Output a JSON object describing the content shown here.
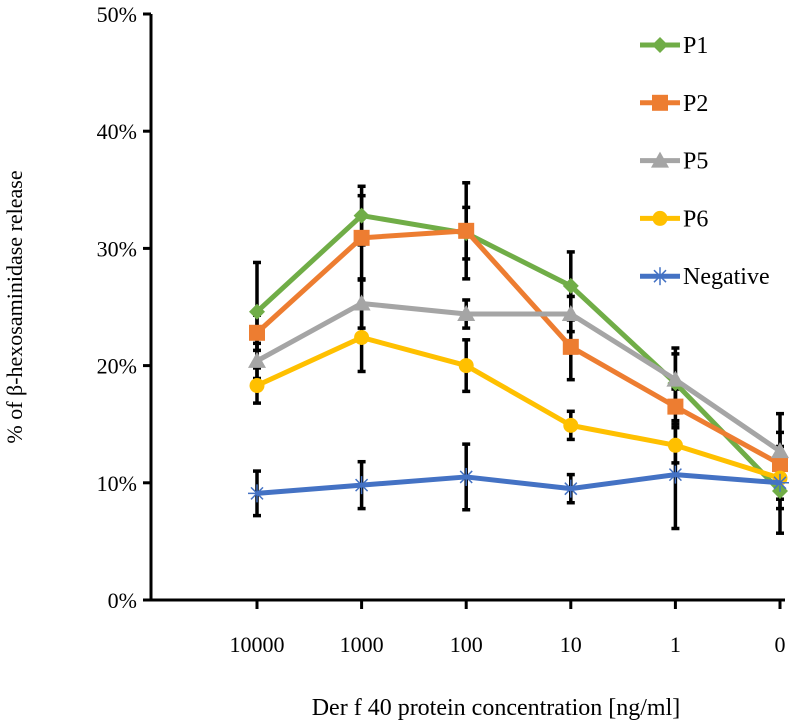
{
  "chart_data": {
    "type": "line",
    "title": "",
    "xlabel": "Der f 40 protein concentration [ng/ml]",
    "ylabel": "% of β-hexosaminidase release",
    "categories": [
      "10000",
      "1000",
      "100",
      "10",
      "1",
      "0"
    ],
    "ylim": [
      0,
      50
    ],
    "yticks": [
      "0%",
      "10%",
      "20%",
      "30%",
      "40%",
      "50%"
    ],
    "legend_position": "top-right",
    "grid": false,
    "series": [
      {
        "name": "P1",
        "color": "#70AD47",
        "marker": "diamond",
        "values": [
          24.6,
          32.8,
          31.3,
          26.8,
          18.5,
          9.3
        ],
        "errors": [
          4.2,
          2.5,
          2.2,
          2.9,
          2.5,
          1.5
        ]
      },
      {
        "name": "P2",
        "color": "#ED7D31",
        "marker": "square",
        "values": [
          22.8,
          30.9,
          31.5,
          21.6,
          16.5,
          11.6
        ],
        "errors": [
          1.5,
          3.6,
          4.1,
          2.8,
          1.5,
          1.5
        ]
      },
      {
        "name": "P5",
        "color": "#A5A5A5",
        "marker": "triangle",
        "values": [
          20.4,
          25.3,
          24.4,
          24.4,
          18.8,
          12.7
        ],
        "errors": [
          1.5,
          2.1,
          1.2,
          1.5,
          2.7,
          3.2
        ]
      },
      {
        "name": "P6",
        "color": "#FFC000",
        "marker": "circle",
        "values": [
          18.3,
          22.4,
          20.0,
          14.9,
          13.2,
          10.4
        ],
        "errors": [
          1.5,
          2.9,
          2.2,
          1.2,
          1.5,
          1.8
        ]
      },
      {
        "name": "Negative",
        "color": "#4472C4",
        "marker": "star",
        "values": [
          9.1,
          9.8,
          10.5,
          9.5,
          10.7,
          10.0
        ],
        "errors": [
          1.9,
          2.0,
          2.8,
          1.2,
          4.6,
          4.3
        ]
      }
    ]
  }
}
